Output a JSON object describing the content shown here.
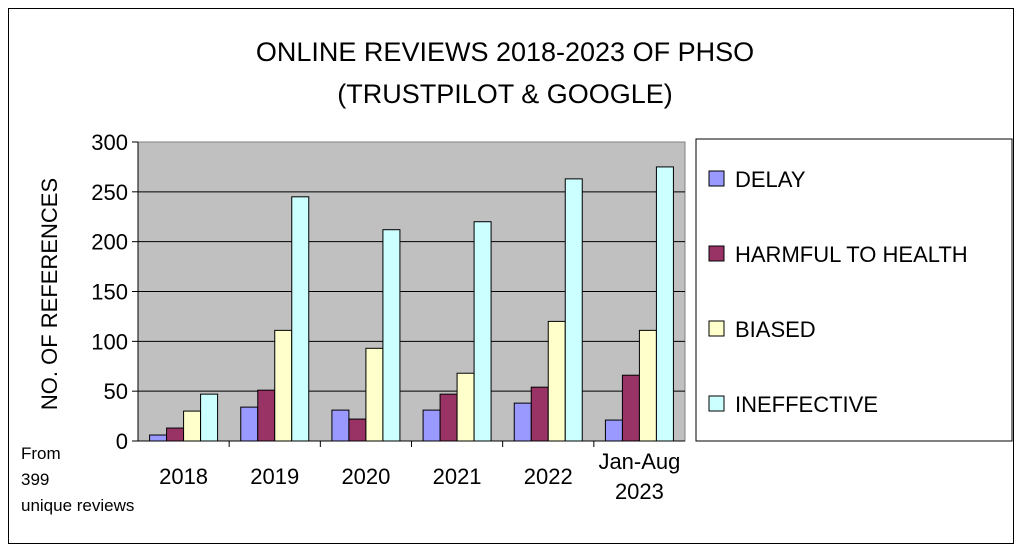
{
  "chart_data": {
    "type": "bar",
    "title_line1": "ONLINE REVIEWS 2018-2023 OF PHSO",
    "title_line2": "(TRUSTPILOT & GOOGLE)",
    "ylabel": "NO. OF REFERENCES",
    "xlabel": "",
    "ylim": [
      0,
      300
    ],
    "yticks": [
      0,
      50,
      100,
      150,
      200,
      250,
      300
    ],
    "grid": true,
    "legend_position": "right",
    "categories": [
      "2018",
      "2019",
      "2020",
      "2021",
      "2022",
      "Jan-Aug 2023"
    ],
    "category_lines": [
      [
        "2018"
      ],
      [
        "2019"
      ],
      [
        "2020"
      ],
      [
        "2021"
      ],
      [
        "2022"
      ],
      [
        "Jan-Aug",
        "2023"
      ]
    ],
    "series": [
      {
        "name": "DELAY",
        "color": "#9999ff",
        "values": [
          6,
          34,
          31,
          31,
          38,
          21
        ]
      },
      {
        "name": "HARMFUL TO HEALTH",
        "color": "#993366",
        "values": [
          13,
          51,
          22,
          47,
          54,
          66
        ]
      },
      {
        "name": "BIASED",
        "color": "#ffffcc",
        "values": [
          30,
          111,
          93,
          68,
          120,
          111
        ]
      },
      {
        "name": "INEFFECTIVE",
        "color": "#ccffff",
        "values": [
          47,
          245,
          212,
          220,
          263,
          275
        ]
      }
    ],
    "plot_background": "#c0c0c0",
    "note_lines": [
      "From",
      "399",
      "unique reviews"
    ]
  }
}
